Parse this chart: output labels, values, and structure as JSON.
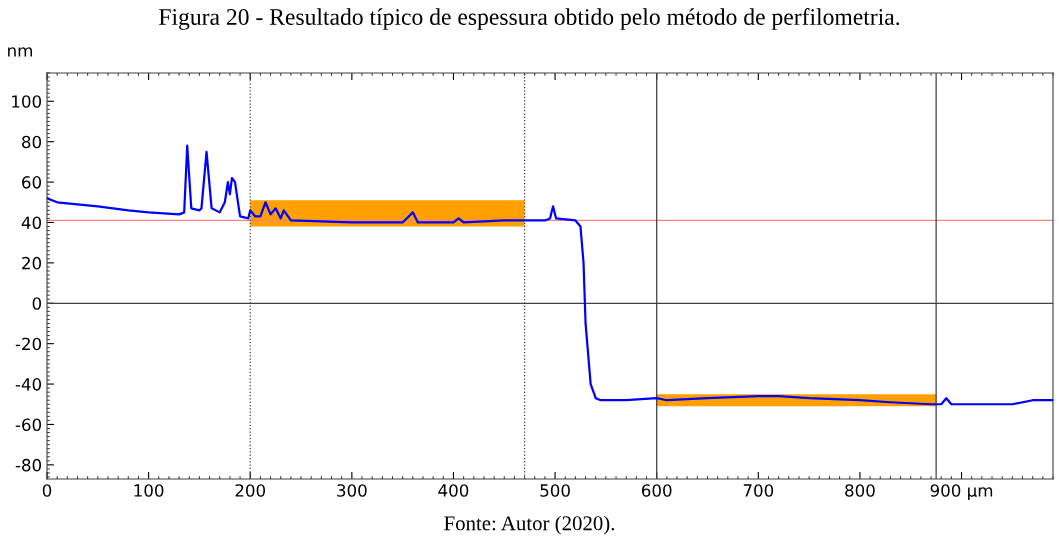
{
  "chart_data": {
    "type": "line",
    "title": "Figura 20 - Resultado típico de espessura obtido pelo método de perfilometria.",
    "ylabel": "nm",
    "annotations": [
      "Fonte: Autor (2020)."
    ],
    "xlim": [
      0,
      990
    ],
    "ylim": [
      -87,
      114
    ],
    "xticks": [
      0,
      100,
      200,
      300,
      400,
      500,
      600,
      700,
      800,
      {
        "value": 900,
        "label": "900 µm"
      }
    ],
    "yticks": [
      -80,
      -60,
      -40,
      -20,
      0,
      20,
      40,
      60,
      80,
      100
    ],
    "grid": false,
    "legend": false,
    "marker": "none",
    "line_style": "solid",
    "ref_lines": [
      {
        "axis": "y",
        "value": 41,
        "color": "#ff8080",
        "line_style": "solid"
      },
      {
        "axis": "y",
        "value": 0,
        "color": "#404040",
        "line_style": "solid"
      },
      {
        "axis": "x",
        "value": 200,
        "color": "#404040",
        "line_style": "dotted"
      },
      {
        "axis": "x",
        "value": 470,
        "color": "#404040",
        "line_style": "dotted"
      },
      {
        "axis": "x",
        "value": 600,
        "color": "#404040",
        "line_style": "solid"
      },
      {
        "axis": "x",
        "value": 875,
        "color": "#404040",
        "line_style": "solid"
      }
    ],
    "series": [
      {
        "color": "#ffa000",
        "x": [
          200,
          470
        ],
        "values": [
          null,
          null
        ],
        "lower": [
          38,
          38
        ],
        "upper": [
          51,
          51
        ]
      },
      {
        "color": "#ffa000",
        "x": [
          600,
          875
        ],
        "values": [
          null,
          null
        ],
        "lower": [
          -51,
          -51
        ],
        "upper": [
          -45,
          -45
        ]
      },
      {
        "color": "#0000ff",
        "x": [
          0,
          10,
          30,
          50,
          80,
          100,
          130,
          135,
          138,
          142,
          150,
          152,
          157,
          162,
          170,
          175,
          178,
          180,
          182,
          185,
          190,
          198,
          200,
          205,
          210,
          215,
          220,
          225,
          230,
          233,
          240,
          300,
          350,
          360,
          365,
          400,
          405,
          410,
          450,
          470,
          490,
          495,
          498,
          501,
          520,
          525,
          528,
          530,
          535,
          540,
          545,
          570,
          600,
          610,
          650,
          700,
          720,
          750,
          800,
          830,
          870,
          880,
          885,
          890,
          950,
          970,
          990
        ],
        "values": [
          52,
          50,
          49,
          48,
          46,
          45,
          44,
          45,
          78,
          47,
          46,
          47,
          75,
          47,
          45,
          50,
          60,
          54,
          62,
          60,
          43,
          42,
          46,
          43,
          43,
          50,
          44,
          47,
          42,
          46,
          41,
          40,
          40,
          45,
          40,
          40,
          42,
          40,
          41,
          41,
          41,
          42,
          48,
          42,
          41,
          38,
          20,
          -10,
          -40,
          -47,
          -48,
          -48,
          -47,
          -48,
          -47,
          -46,
          -46,
          -47,
          -48,
          -49,
          -50,
          -50,
          -47,
          -50,
          -50,
          -48,
          -48
        ]
      }
    ]
  }
}
